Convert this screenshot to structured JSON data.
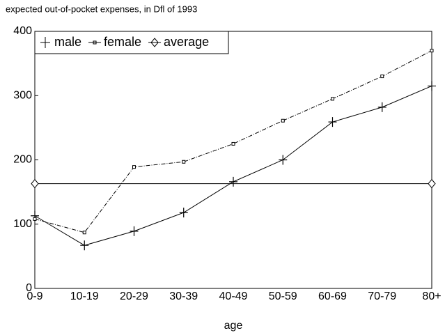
{
  "chart_data": {
    "type": "line",
    "title": "expected out-of-pocket expenses, in Dfl of 1993",
    "x_label": "age",
    "categories": [
      "0-9",
      "10-19",
      "20-29",
      "30-39",
      "40-49",
      "50-59",
      "60-69",
      "70-79",
      "80+"
    ],
    "series": [
      {
        "name": "male",
        "color": "#000000",
        "marker": "plus",
        "values": [
          113,
          67,
          89,
          118,
          166,
          200,
          259,
          282,
          315
        ]
      },
      {
        "name": "female",
        "color": "#000000",
        "marker": "square",
        "values": [
          108,
          87,
          189,
          197,
          225,
          261,
          295,
          330,
          370
        ]
      },
      {
        "name": "average",
        "color": "#000000",
        "marker": "diamond",
        "values": [
          163,
          163,
          163,
          163,
          163,
          163,
          163,
          163,
          163
        ]
      }
    ],
    "ylim": [
      0,
      400
    ],
    "yticks": [
      0,
      100,
      200,
      300,
      400
    ],
    "legend": "upper left",
    "grid": false
  }
}
